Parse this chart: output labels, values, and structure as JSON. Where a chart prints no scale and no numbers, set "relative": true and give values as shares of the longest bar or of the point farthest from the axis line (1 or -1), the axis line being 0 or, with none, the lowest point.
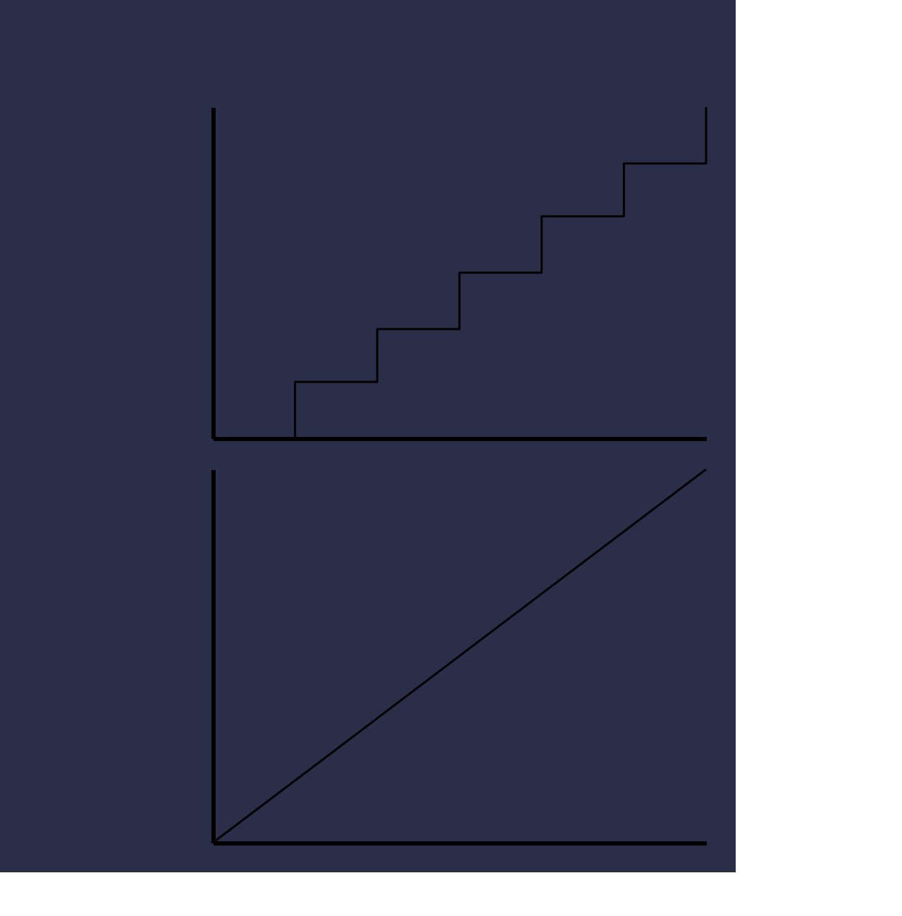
{
  "chart_data": [
    {
      "type": "step",
      "relative": true,
      "categories": [
        null,
        null,
        null,
        null,
        null,
        null,
        null
      ],
      "values": [
        0,
        0.17,
        0.33,
        0.5,
        0.67,
        0.83,
        1
      ],
      "color": "#000000",
      "grid": false,
      "tick_labels": false
    },
    {
      "type": "line",
      "relative": true,
      "categories": [
        null,
        null
      ],
      "values": [
        0,
        1
      ],
      "color": "#000000",
      "grid": false,
      "tick_labels": false
    }
  ]
}
